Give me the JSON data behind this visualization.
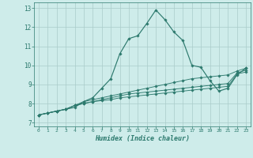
{
  "xlabel": "Humidex (Indice chaleur)",
  "background_color": "#ceecea",
  "grid_color": "#aaccca",
  "line_color": "#2d7a6e",
  "xlim": [
    -0.5,
    23.5
  ],
  "ylim": [
    6.8,
    13.3
  ],
  "xticks": [
    0,
    1,
    2,
    3,
    4,
    5,
    6,
    7,
    8,
    9,
    10,
    11,
    12,
    13,
    14,
    15,
    16,
    17,
    18,
    19,
    20,
    21,
    22,
    23
  ],
  "yticks": [
    7,
    8,
    9,
    10,
    11,
    12,
    13
  ],
  "series": [
    [
      7.4,
      7.5,
      7.6,
      7.7,
      7.8,
      8.1,
      8.3,
      8.8,
      9.3,
      10.6,
      11.4,
      11.55,
      12.2,
      12.9,
      12.4,
      11.75,
      11.3,
      10.0,
      9.9,
      9.2,
      8.65,
      8.8,
      9.5,
      9.85
    ],
    [
      7.4,
      7.5,
      7.6,
      7.7,
      7.9,
      8.1,
      8.2,
      8.3,
      8.4,
      8.5,
      8.6,
      8.7,
      8.8,
      8.9,
      9.0,
      9.1,
      9.2,
      9.3,
      9.35,
      9.4,
      9.45,
      9.5,
      9.7,
      9.85
    ],
    [
      7.4,
      7.5,
      7.6,
      7.7,
      7.9,
      8.0,
      8.1,
      8.2,
      8.3,
      8.4,
      8.5,
      8.55,
      8.6,
      8.65,
      8.7,
      8.75,
      8.8,
      8.85,
      8.9,
      8.95,
      9.0,
      9.05,
      9.6,
      9.75
    ],
    [
      7.4,
      7.5,
      7.6,
      7.7,
      7.9,
      8.0,
      8.1,
      8.15,
      8.2,
      8.3,
      8.35,
      8.4,
      8.45,
      8.5,
      8.55,
      8.6,
      8.65,
      8.7,
      8.75,
      8.8,
      8.85,
      8.9,
      9.55,
      9.65
    ]
  ]
}
